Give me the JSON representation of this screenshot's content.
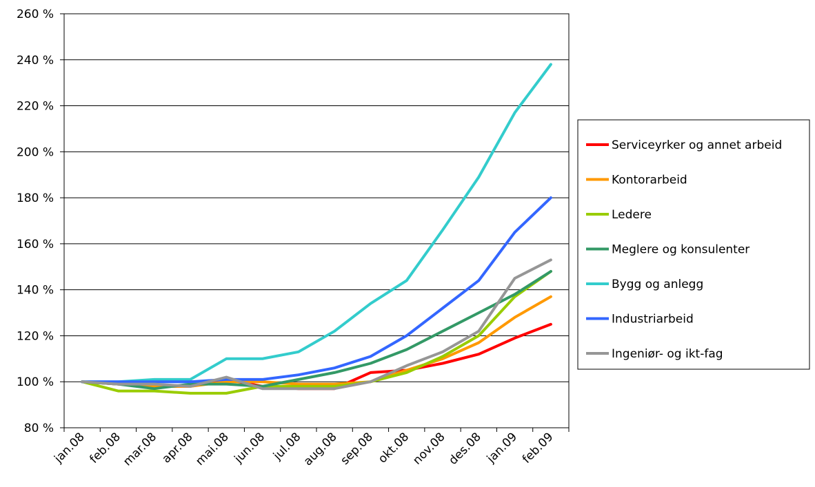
{
  "chart_data": {
    "type": "line",
    "title": "",
    "xlabel": "",
    "ylabel": "",
    "ylim": [
      80,
      260
    ],
    "y_ticks": [
      "80 %",
      "100 %",
      "120 %",
      "140 %",
      "160 %",
      "180 %",
      "200 %",
      "220 %",
      "240 %",
      "260 %"
    ],
    "y_tick_values": [
      80,
      100,
      120,
      140,
      160,
      180,
      200,
      220,
      240,
      260
    ],
    "categories": [
      "jan.08",
      "feb.08",
      "mar.08",
      "apr.08",
      "mai.08",
      "jun.08",
      "jul.08",
      "aug.08",
      "sep.08",
      "okt.08",
      "nov.08",
      "des.08",
      "jan.09",
      "feb.09"
    ],
    "grid": "horizontal",
    "legend_position": "right",
    "series": [
      {
        "name": "Serviceyrker og annet arbeid",
        "color": "#ff0000",
        "values": [
          100,
          99,
          98,
          98,
          101,
          98,
          97,
          97,
          104,
          105,
          108,
          112,
          119,
          125
        ]
      },
      {
        "name": "Kontorarbeid",
        "color": "#ff9900",
        "values": [
          100,
          99,
          98,
          98,
          100,
          100,
          99,
          99,
          100,
          105,
          110,
          117,
          128,
          137
        ]
      },
      {
        "name": "Ledere",
        "color": "#99cc00",
        "values": [
          100,
          96,
          96,
          95,
          95,
          98,
          98,
          98,
          100,
          104,
          111,
          120,
          137,
          148
        ]
      },
      {
        "name": "Meglere og konsulenter",
        "color": "#339966",
        "values": [
          100,
          99,
          97,
          99,
          99,
          98,
          101,
          104,
          108,
          114,
          122,
          130,
          138,
          148
        ]
      },
      {
        "name": "Bygg og anlegg",
        "color": "#33cccc",
        "values": [
          100,
          100,
          101,
          101,
          110,
          110,
          113,
          122,
          134,
          144,
          166,
          189,
          217,
          238
        ]
      },
      {
        "name": "Industriarbeid",
        "color": "#3366ff",
        "values": [
          100,
          100,
          100,
          100,
          101,
          101,
          103,
          106,
          111,
          120,
          132,
          144,
          165,
          180
        ]
      },
      {
        "name": "Ingeniør- og ikt-fag",
        "color": "#969696",
        "values": [
          100,
          99,
          99,
          98,
          102,
          97,
          97,
          97,
          100,
          107,
          113,
          122,
          145,
          153
        ]
      }
    ]
  }
}
